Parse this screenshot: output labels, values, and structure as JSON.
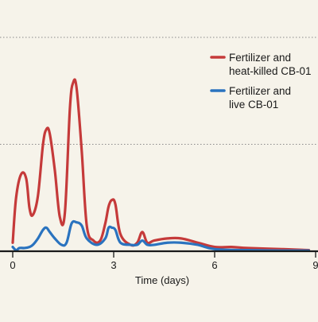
{
  "chart_data": {
    "type": "line",
    "xlabel": "Time (days)",
    "ylabel": "",
    "xlim": [
      -0.25,
      9.0
    ],
    "ylim": [
      0,
      100
    ],
    "xticks": [
      0,
      3,
      6,
      9
    ],
    "ygrid_values": [
      50,
      100
    ],
    "grid": true,
    "legend_position": "top-right",
    "series": [
      {
        "name": "Fertilizer and heat-killed CB-01",
        "color": "#c53a3a",
        "x": [
          0.0,
          0.1,
          0.25,
          0.4,
          0.5,
          0.6,
          0.75,
          0.9,
          1.0,
          1.1,
          1.25,
          1.4,
          1.55,
          1.7,
          1.8,
          1.9,
          2.05,
          2.2,
          2.4,
          2.6,
          2.75,
          2.85,
          2.95,
          3.05,
          3.2,
          3.5,
          3.7,
          3.85,
          4.0,
          4.2,
          4.6,
          5.0,
          5.5,
          6.0,
          6.5,
          7.0,
          8.0,
          8.8
        ],
        "y": [
          4,
          25,
          36,
          34,
          20,
          17,
          26,
          50,
          57,
          55,
          38,
          16,
          18,
          67,
          79,
          76,
          47,
          12,
          5,
          5,
          13,
          21,
          24,
          22,
          8,
          3,
          4,
          9,
          4,
          5,
          6,
          6,
          4,
          2,
          2,
          1.5,
          1,
          0.5
        ]
      },
      {
        "name": "Fertilizer and live CB-01",
        "color": "#2a73bf",
        "x": [
          0.0,
          0.1,
          0.2,
          0.35,
          0.5,
          0.6,
          0.75,
          0.9,
          1.0,
          1.1,
          1.25,
          1.45,
          1.6,
          1.75,
          1.9,
          2.05,
          2.2,
          2.5,
          2.75,
          2.85,
          2.95,
          3.05,
          3.2,
          3.5,
          3.7,
          3.85,
          4.0,
          4.2,
          4.6,
          5.0,
          5.5,
          6.0,
          7.0,
          8.0,
          8.8
        ],
        "y": [
          2,
          0.5,
          1.5,
          1.5,
          2,
          3,
          6,
          10,
          11,
          9,
          6,
          3,
          4,
          13,
          13.5,
          12,
          6,
          3,
          6,
          11,
          11,
          10,
          4,
          3,
          3,
          5,
          3,
          3,
          4,
          4,
          3,
          1,
          0.5,
          0.3,
          0.3
        ]
      }
    ]
  }
}
